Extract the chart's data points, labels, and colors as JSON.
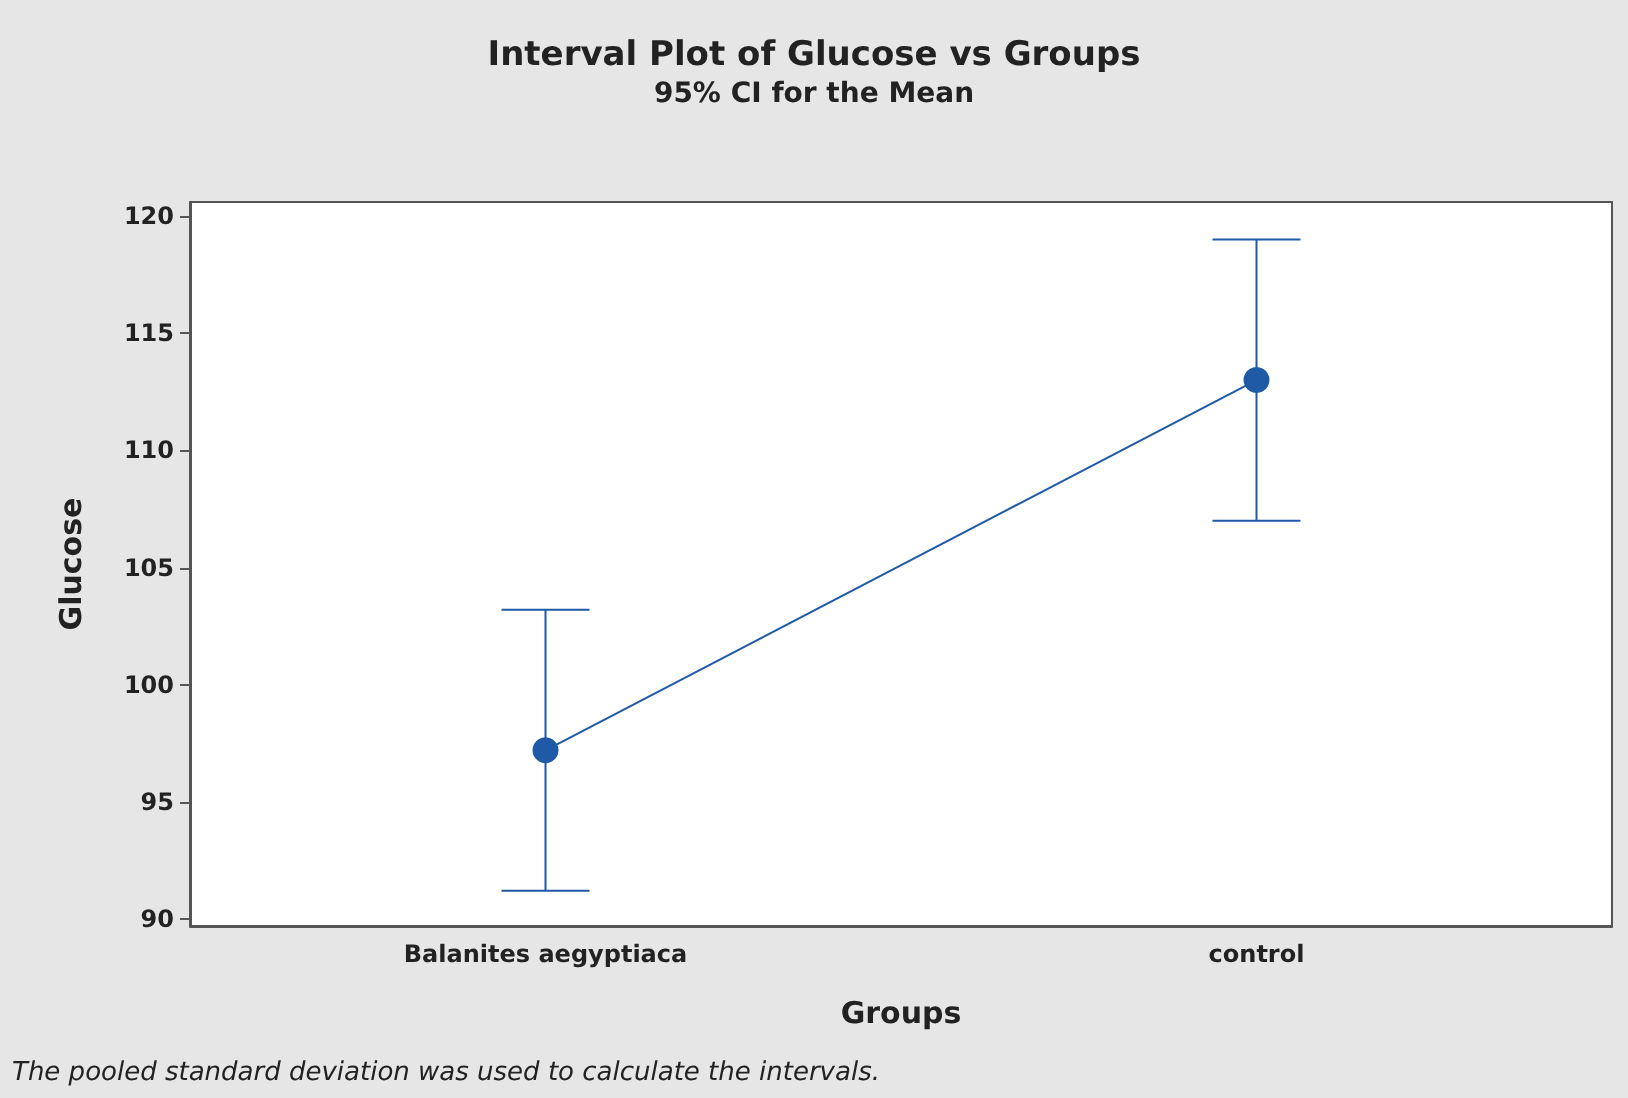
{
  "chart_data": {
    "type": "line",
    "title": "Interval Plot of Glucose vs Groups",
    "subtitle": "95% CI for the Mean",
    "xlabel": "Groups",
    "ylabel": "Glucose",
    "categories": [
      "Balanites aegyptiaca",
      "control"
    ],
    "series": [
      {
        "color": "#1f5aa6",
        "values": [
          97.2,
          113.0
        ],
        "errors": [
          6.0,
          6.0
        ]
      }
    ],
    "ylim": [
      89.7,
      120.6
    ],
    "yticks": [
      90,
      95,
      100,
      105,
      110,
      115,
      120
    ],
    "marker": "circle",
    "line_style": "solid",
    "annotations": [
      "The pooled standard deviation was used to calculate the intervals."
    ]
  }
}
